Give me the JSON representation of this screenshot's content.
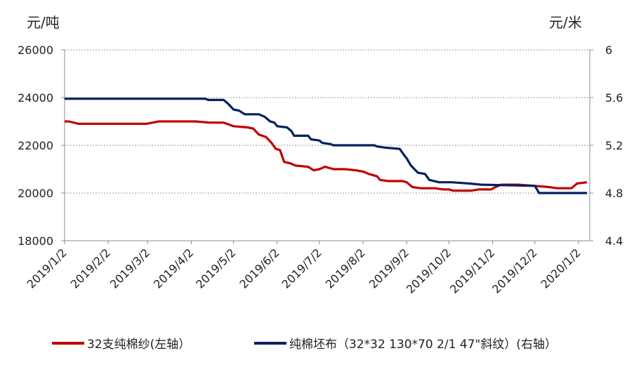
{
  "chart_data": {
    "type": "line",
    "left_unit": "元/吨",
    "right_unit": "元/米",
    "left_axis": {
      "min": 18000,
      "max": 26000,
      "ticks": [
        18000,
        20000,
        22000,
        24000,
        26000
      ]
    },
    "right_axis": {
      "min": 4.4,
      "max": 6,
      "ticks": [
        "4.4",
        "4.8",
        "5.2",
        "5.6",
        "6"
      ]
    },
    "x_tick_labels": [
      "2019/1/2",
      "2019/2/2",
      "2019/3/2",
      "2019/4/2",
      "2019/5/2",
      "2019/6/2",
      "2019/7/2",
      "2019/8/2",
      "2019/9/2",
      "2019/10/2",
      "2019/11/2",
      "2019/12/2",
      "2020/1/2"
    ],
    "grid": true,
    "legend_position": "bottom",
    "series": [
      {
        "name": "32支纯棉纱(左轴）",
        "axis": "left",
        "color": "#c00000",
        "points": [
          [
            "2019-01-02",
            23000
          ],
          [
            "2019-01-05",
            23000
          ],
          [
            "2019-01-12",
            22900
          ],
          [
            "2019-02-02",
            22900
          ],
          [
            "2019-03-01",
            22900
          ],
          [
            "2019-03-10",
            23000
          ],
          [
            "2019-04-05",
            23000
          ],
          [
            "2019-04-15",
            22950
          ],
          [
            "2019-04-25",
            22950
          ],
          [
            "2019-05-02",
            22800
          ],
          [
            "2019-05-12",
            22750
          ],
          [
            "2019-05-16",
            22700
          ],
          [
            "2019-05-20",
            22450
          ],
          [
            "2019-05-25",
            22350
          ],
          [
            "2019-05-29",
            22100
          ],
          [
            "2019-06-01",
            21850
          ],
          [
            "2019-06-04",
            21800
          ],
          [
            "2019-06-07",
            21300
          ],
          [
            "2019-06-11",
            21250
          ],
          [
            "2019-06-15",
            21150
          ],
          [
            "2019-06-24",
            21100
          ],
          [
            "2019-06-28",
            20950
          ],
          [
            "2019-07-02",
            21000
          ],
          [
            "2019-07-06",
            21100
          ],
          [
            "2019-07-12",
            21000
          ],
          [
            "2019-07-20",
            21000
          ],
          [
            "2019-07-28",
            20950
          ],
          [
            "2019-08-02",
            20900
          ],
          [
            "2019-08-06",
            20800
          ],
          [
            "2019-08-12",
            20700
          ],
          [
            "2019-08-14",
            20550
          ],
          [
            "2019-08-20",
            20500
          ],
          [
            "2019-08-30",
            20500
          ],
          [
            "2019-09-02",
            20450
          ],
          [
            "2019-09-06",
            20250
          ],
          [
            "2019-09-12",
            20200
          ],
          [
            "2019-09-22",
            20200
          ],
          [
            "2019-09-28",
            20150
          ],
          [
            "2019-10-02",
            20150
          ],
          [
            "2019-10-05",
            20100
          ],
          [
            "2019-10-18",
            20100
          ],
          [
            "2019-10-23",
            20150
          ],
          [
            "2019-11-01",
            20150
          ],
          [
            "2019-11-04",
            20250
          ],
          [
            "2019-11-08",
            20350
          ],
          [
            "2019-11-20",
            20350
          ],
          [
            "2019-12-02",
            20300
          ],
          [
            "2019-12-12",
            20250
          ],
          [
            "2019-12-18",
            20200
          ],
          [
            "2019-12-28",
            20200
          ],
          [
            "2020-01-01",
            20400
          ],
          [
            "2020-01-08",
            20450
          ]
        ]
      },
      {
        "name": "纯棉坯布（32*32 130*70 2/1 47\"斜纹）(右轴）",
        "axis": "right",
        "color": "#002060",
        "points": [
          [
            "2019-01-02",
            5.59
          ],
          [
            "2019-04-12",
            5.59
          ],
          [
            "2019-04-14",
            5.58
          ],
          [
            "2019-04-25",
            5.58
          ],
          [
            "2019-04-28",
            5.55
          ],
          [
            "2019-05-02",
            5.5
          ],
          [
            "2019-05-06",
            5.49
          ],
          [
            "2019-05-10",
            5.46
          ],
          [
            "2019-05-20",
            5.46
          ],
          [
            "2019-05-24",
            5.44
          ],
          [
            "2019-05-28",
            5.4
          ],
          [
            "2019-05-31",
            5.39
          ],
          [
            "2019-06-02",
            5.36
          ],
          [
            "2019-06-09",
            5.35
          ],
          [
            "2019-06-12",
            5.32
          ],
          [
            "2019-06-14",
            5.28
          ],
          [
            "2019-06-24",
            5.28
          ],
          [
            "2019-06-26",
            5.25
          ],
          [
            "2019-07-02",
            5.24
          ],
          [
            "2019-07-04",
            5.22
          ],
          [
            "2019-07-10",
            5.21
          ],
          [
            "2019-07-12",
            5.2
          ],
          [
            "2019-08-10",
            5.2
          ],
          [
            "2019-08-12",
            5.19
          ],
          [
            "2019-08-18",
            5.18
          ],
          [
            "2019-08-28",
            5.17
          ],
          [
            "2019-08-31",
            5.12
          ],
          [
            "2019-09-02",
            5.09
          ],
          [
            "2019-09-05",
            5.03
          ],
          [
            "2019-09-10",
            4.97
          ],
          [
            "2019-09-15",
            4.96
          ],
          [
            "2019-09-18",
            4.91
          ],
          [
            "2019-09-25",
            4.89
          ],
          [
            "2019-10-01",
            4.89
          ],
          [
            "2019-10-04",
            4.89
          ],
          [
            "2019-10-16",
            4.88
          ],
          [
            "2019-10-25",
            4.87
          ],
          [
            "2019-12-02",
            4.86
          ],
          [
            "2019-12-05",
            4.8
          ],
          [
            "2020-01-08",
            4.8
          ]
        ]
      }
    ]
  }
}
